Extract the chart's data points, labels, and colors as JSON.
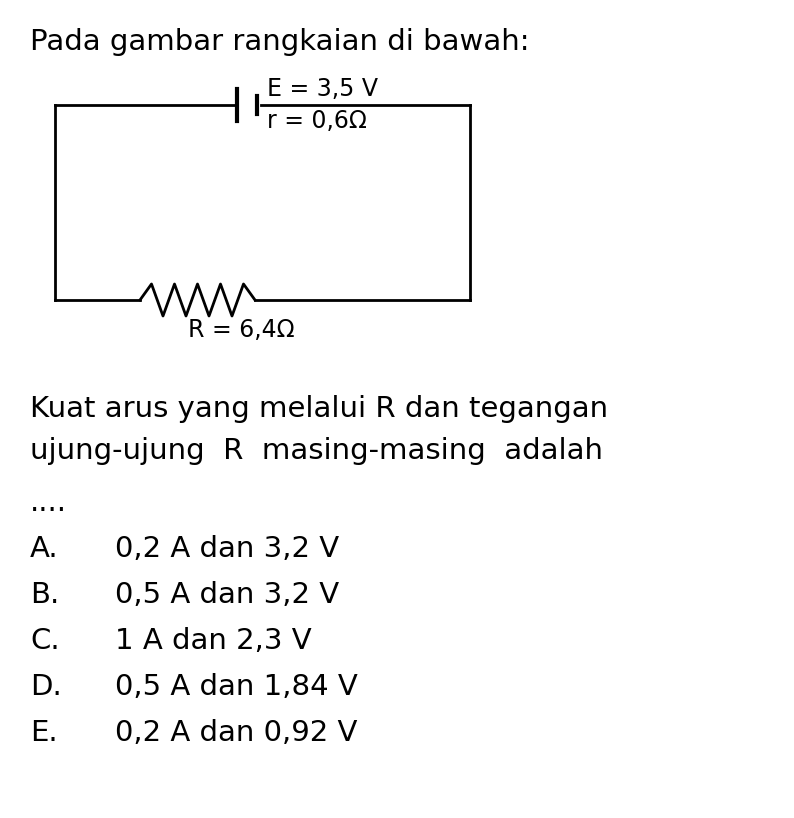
{
  "title_line": "Pada gambar rangkaian di bawah:",
  "E_label": "E = 3,5 V",
  "r_label": "r = 0,6Ω",
  "R_label": "R = 6,4Ω",
  "question_line1": "Kuat arus yang melalui R dan tegangan",
  "question_line2": "ujung-ujung  R  masing-masing  adalah",
  "question_dots": "....",
  "options": [
    {
      "letter": "A.",
      "text": "0,2 A dan 3,2 V"
    },
    {
      "letter": "B.",
      "text": "0,5 A dan 3,2 V"
    },
    {
      "letter": "C.",
      "text": "1 A dan 2,3 V"
    },
    {
      "letter": "D.",
      "text": "0,5 A dan 1,84 V"
    },
    {
      "letter": "E.",
      "text": "0,2 A dan 0,92 V"
    }
  ],
  "bg_color": "#ffffff",
  "text_color": "#000000",
  "font_size_title": 21,
  "font_size_body": 21,
  "font_size_circuit": 17,
  "fig_width": 7.94,
  "fig_height": 8.18,
  "dpi": 100
}
